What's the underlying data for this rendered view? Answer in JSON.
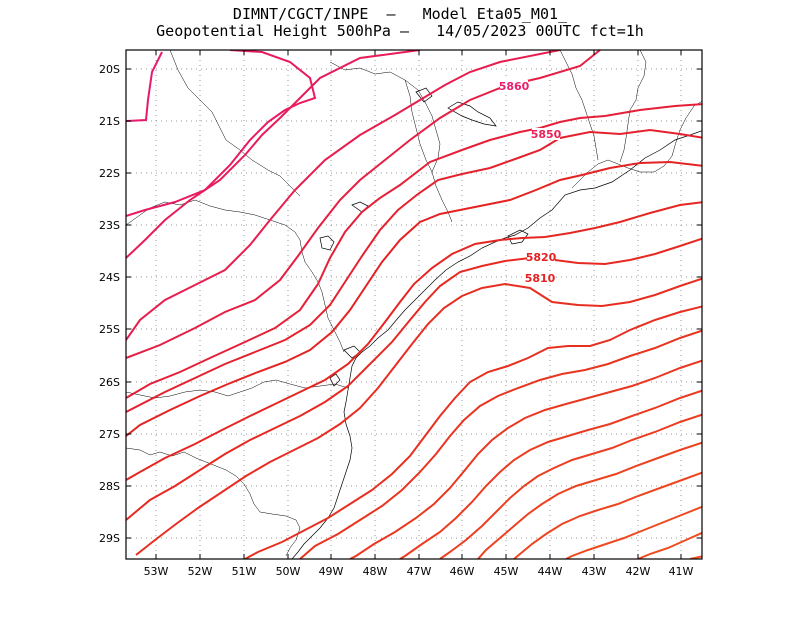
{
  "header": {
    "line1": "DIMNT/CGCT/INPE  –   Model Eta05_M01_",
    "line2": "Geopotential Height 500hPa –   14/05/2023 00UTC fct=1h"
  },
  "axes": {
    "lat_ticks": [
      "20S",
      "21S",
      "22S",
      "23S",
      "24S",
      "25S",
      "26S",
      "27S",
      "28S",
      "29S"
    ],
    "lon_ticks": [
      "53W",
      "52W",
      "51W",
      "50W",
      "49W",
      "48W",
      "47W",
      "46W",
      "45W",
      "44W",
      "43W",
      "42W",
      "41W"
    ]
  },
  "contour_labels": [
    {
      "text": "5860",
      "color": "#e81e6e"
    },
    {
      "text": "5850",
      "color": "#e8225a"
    },
    {
      "text": "5820",
      "color": "#e52222"
    },
    {
      "text": "5810",
      "color": "#e52222"
    }
  ],
  "colors": {
    "high": "#e8196e",
    "mid": "#e52222",
    "low": "#f0501e",
    "coast": "#000000",
    "grid": "#9a9a9a"
  }
}
